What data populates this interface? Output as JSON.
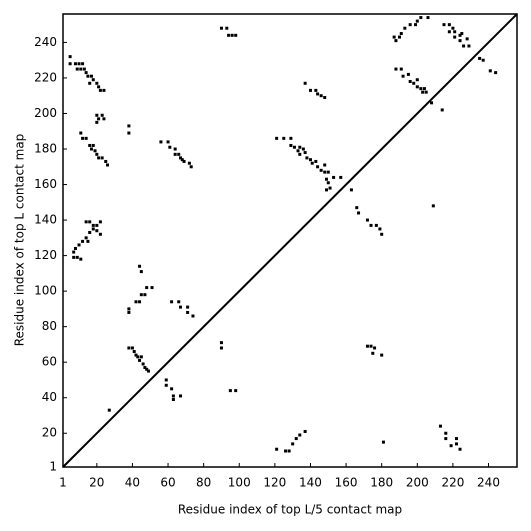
{
  "chart_data": {
    "type": "scatter",
    "x_label": "Residue index of top L/5 contact map",
    "y_label": "Residue index of top L contact map",
    "color": "#000000",
    "xlim": [
      1,
      256
    ],
    "ylim": [
      1,
      256
    ],
    "xticks": [
      1,
      20,
      40,
      60,
      80,
      100,
      120,
      140,
      160,
      180,
      200,
      220,
      240
    ],
    "yticks": [
      1,
      20,
      40,
      60,
      80,
      100,
      120,
      140,
      160,
      180,
      200,
      220,
      240
    ],
    "x": [
      5,
      5,
      8,
      10,
      12,
      9,
      11,
      13,
      14,
      15,
      17,
      18,
      16,
      20,
      21,
      22,
      24,
      20,
      21,
      23,
      24,
      20,
      11,
      12,
      14,
      16,
      18,
      17,
      19,
      20,
      21,
      23,
      25,
      26,
      14,
      16,
      18,
      20,
      22,
      18,
      20,
      22,
      16,
      14,
      12,
      15,
      10,
      8,
      7,
      7,
      9,
      11,
      27,
      38,
      38,
      42,
      44,
      45,
      47,
      48,
      51,
      45,
      44,
      38,
      40,
      41,
      42,
      43,
      45,
      44,
      46,
      47,
      48,
      49,
      38,
      38,
      56,
      60,
      61,
      64,
      64,
      66,
      67,
      68,
      69,
      72,
      73,
      62,
      66,
      67,
      71,
      71,
      74,
      59,
      59,
      62,
      63,
      63,
      67,
      90,
      93,
      94,
      96,
      98,
      90,
      90,
      95,
      98,
      121,
      125,
      129,
      129,
      131,
      133,
      134,
      134,
      136,
      137,
      138,
      140,
      141,
      143,
      144,
      146,
      148,
      150,
      149,
      150,
      151,
      149,
      153,
      157,
      163,
      148,
      137,
      140,
      143,
      144,
      146,
      148,
      121,
      126,
      128,
      130,
      132,
      134,
      137,
      166,
      167,
      172,
      174,
      177,
      179,
      180,
      181,
      174,
      176,
      175,
      180,
      172,
      187,
      188,
      190,
      191,
      193,
      196,
      199,
      200,
      202,
      206,
      215,
      218,
      218,
      220,
      221,
      221,
      224,
      225,
      224,
      226,
      228,
      229,
      235,
      237,
      241,
      244,
      188,
      191,
      192,
      195,
      196,
      198,
      200,
      200,
      202,
      204,
      203,
      205,
      208,
      214,
      209,
      213,
      216,
      216,
      219,
      222,
      222,
      224
    ],
    "y": [
      232,
      228,
      228,
      228,
      228,
      225,
      225,
      225,
      223,
      221,
      221,
      219,
      217,
      217,
      215,
      213,
      213,
      199,
      197,
      199,
      197,
      195,
      189,
      186,
      186,
      182,
      182,
      180,
      179,
      177,
      175,
      175,
      173,
      171,
      139,
      139,
      137,
      137,
      139,
      135,
      134,
      132,
      133,
      130,
      128,
      128,
      126,
      124,
      122,
      119,
      119,
      118,
      33,
      88,
      90,
      94,
      94,
      98,
      98,
      102,
      102,
      111,
      114,
      68,
      68,
      66,
      64,
      63,
      63,
      61,
      59,
      57,
      56,
      55,
      193,
      189,
      184,
      184,
      181,
      180,
      177,
      177,
      175,
      174,
      173,
      172,
      170,
      94,
      94,
      91,
      91,
      88,
      86,
      50,
      47,
      45,
      41,
      39,
      41,
      248,
      248,
      244,
      244,
      244,
      71,
      68,
      44,
      44,
      186,
      186,
      186,
      182,
      181,
      179,
      177,
      181,
      180,
      178,
      175,
      174,
      172,
      173,
      170,
      168,
      167,
      167,
      163,
      161,
      158,
      157,
      164,
      164,
      157,
      171,
      217,
      213,
      213,
      211,
      210,
      209,
      11,
      10,
      10,
      14,
      17,
      19,
      21,
      147,
      144,
      140,
      137,
      137,
      135,
      132,
      15,
      69,
      68,
      65,
      64,
      69,
      243,
      241,
      243,
      245,
      248,
      250,
      250,
      252,
      254,
      254,
      250,
      250,
      246,
      248,
      246,
      243,
      244,
      245,
      241,
      238,
      242,
      238,
      231,
      230,
      224,
      223,
      225,
      225,
      221,
      222,
      218,
      217,
      219,
      215,
      214,
      214,
      212,
      212,
      206,
      202,
      148,
      24,
      20,
      17,
      13,
      14,
      17,
      11
    ]
  }
}
